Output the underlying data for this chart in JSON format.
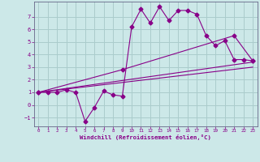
{
  "xlabel": "Windchill (Refroidissement éolien,°C)",
  "background_color": "#cce8e8",
  "grid_color": "#aacccc",
  "line_color": "#880088",
  "xlim": [
    -0.5,
    23.5
  ],
  "ylim": [
    -1.7,
    8.2
  ],
  "xticks": [
    0,
    1,
    2,
    3,
    4,
    5,
    6,
    7,
    8,
    9,
    10,
    11,
    12,
    13,
    14,
    15,
    16,
    17,
    18,
    19,
    20,
    21,
    22,
    23
  ],
  "yticks": [
    -1,
    0,
    1,
    2,
    3,
    4,
    5,
    6,
    7
  ],
  "series1_x": [
    0,
    1,
    2,
    3,
    4,
    5,
    6,
    7,
    8,
    9,
    10,
    11,
    12,
    13,
    14,
    15,
    16,
    17,
    18,
    19,
    20,
    21,
    22,
    23
  ],
  "series1_y": [
    1,
    1,
    1,
    1.2,
    1,
    -1.3,
    -0.2,
    1.1,
    0.8,
    0.7,
    6.2,
    7.6,
    6.5,
    7.8,
    6.7,
    7.5,
    7.5,
    7.2,
    5.5,
    4.7,
    5.1,
    3.6,
    3.6,
    3.5
  ],
  "series2_x": [
    0,
    9,
    21,
    23
  ],
  "series2_y": [
    1,
    2.8,
    5.5,
    3.5
  ],
  "series3_x": [
    0,
    23
  ],
  "series3_y": [
    1,
    3.4
  ],
  "series4_x": [
    0,
    23
  ],
  "series4_y": [
    1,
    3.0
  ],
  "marker": "D",
  "markersize": 2.5
}
